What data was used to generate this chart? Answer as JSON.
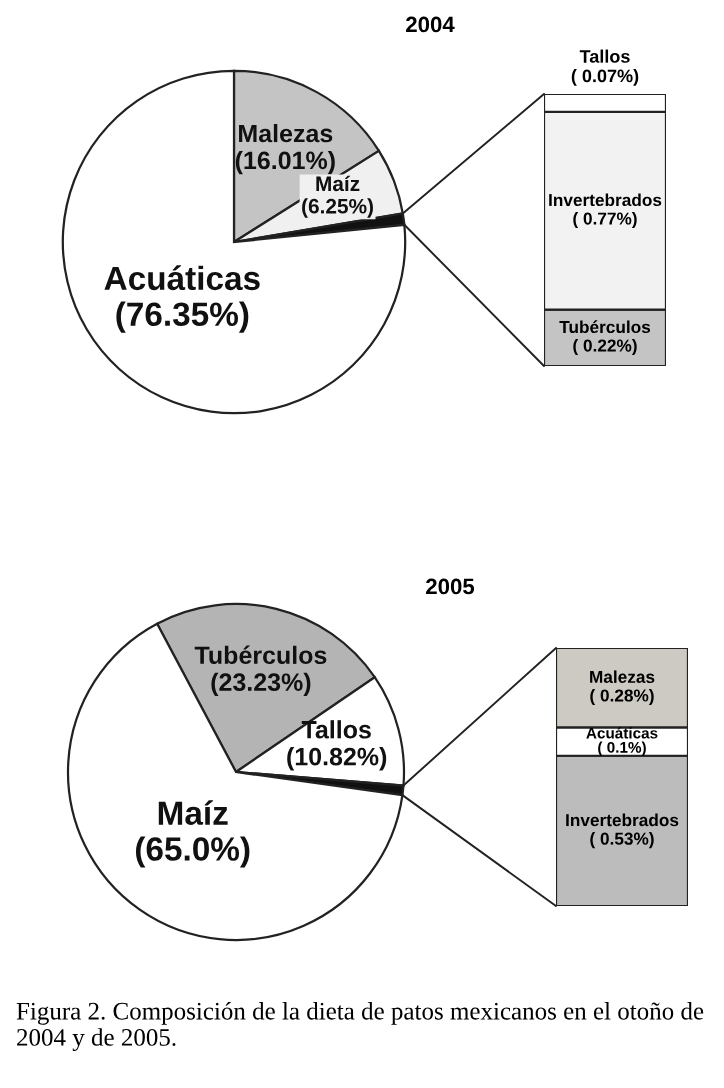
{
  "chart_data": [
    {
      "type": "pie",
      "title": "2004",
      "categories": [
        "Malezas",
        "Maíz",
        null,
        "Acuáticas"
      ],
      "values": [
        16.01,
        6.25,
        1.06,
        76.35
      ],
      "colors": [
        "#c4c4c4",
        "#f0f0f0",
        "#111111",
        "#ffffff"
      ],
      "value_labels": [
        "(16.01%)",
        "(6.25%)",
        null,
        "(76.35%)"
      ]
    },
    {
      "type": "bar",
      "stacked": true,
      "categories": [
        null
      ],
      "series": [
        {
          "name": "Tubérculos",
          "color": "#c4c4c4",
          "values": [
            0.22
          ],
          "value_labels": [
            "( 0.22%)"
          ]
        },
        {
          "name": "Invertebrados",
          "color": "#f2f2f2",
          "values": [
            0.77
          ],
          "value_labels": [
            "( 0.77%)"
          ]
        },
        {
          "name": "Tallos",
          "color": "#ffffff",
          "values": [
            0.07
          ],
          "value_labels": [
            "( 0.07%)"
          ]
        }
      ]
    },
    {
      "type": "pie",
      "title": "2005",
      "categories": [
        "Tubérculos",
        "Tallos",
        null,
        "Maíz"
      ],
      "values": [
        23.23,
        10.82,
        0.91,
        65.0
      ],
      "colors": [
        "#b4b4b4",
        "#ffffff",
        "#111111",
        "#ffffff"
      ],
      "value_labels": [
        "(23.23%)",
        "(10.82%)",
        null,
        "(65.0%)"
      ]
    },
    {
      "type": "bar",
      "stacked": true,
      "categories": [
        null
      ],
      "series": [
        {
          "name": "Invertebrados",
          "color": "#bcbcbc",
          "values": [
            0.53
          ],
          "value_labels": [
            "( 0.53%)"
          ]
        },
        {
          "name": "Acuáticas",
          "color": "#ffffff",
          "values": [
            0.1
          ],
          "value_labels": [
            "( 0.1%)"
          ]
        },
        {
          "name": "Malezas",
          "color": "#cdc9c3",
          "values": [
            0.28
          ],
          "value_labels": [
            "( 0.28%)"
          ]
        }
      ],
      "annotations": [
        "Figura 2. Composición de la dieta de patos mexicanos en el otoño de 2004 y de 2005."
      ]
    }
  ]
}
